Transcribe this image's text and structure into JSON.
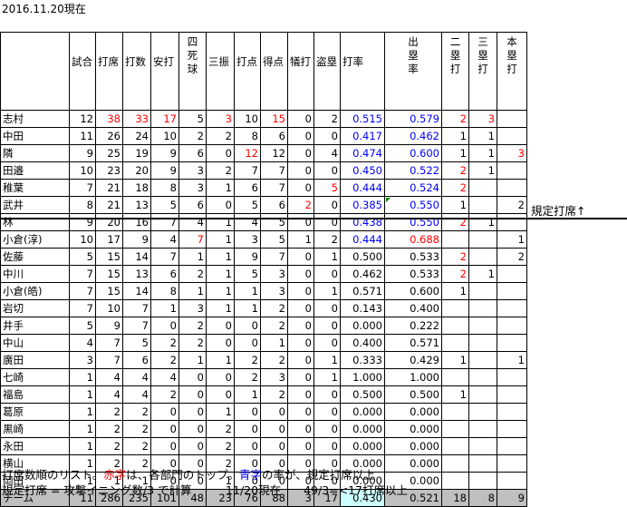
{
  "title": "2016.11.20現在",
  "headers": [
    {
      "key": "name",
      "text": ""
    },
    {
      "key": "games",
      "text": "試合"
    },
    {
      "key": "pa",
      "text": "打席"
    },
    {
      "key": "ab",
      "text": "打数"
    },
    {
      "key": "hits",
      "text": "安打"
    },
    {
      "key": "bb",
      "text": "四死球"
    },
    {
      "key": "so",
      "text": "三振"
    },
    {
      "key": "rbi",
      "text": "打点"
    },
    {
      "key": "runs",
      "text": "得点"
    },
    {
      "key": "sac",
      "text": "犠打"
    },
    {
      "key": "sb",
      "text": "盗塁"
    },
    {
      "key": "avg",
      "text": "打率"
    },
    {
      "key": "obp",
      "text": "出塁率"
    },
    {
      "key": "d",
      "text": "二塁打"
    },
    {
      "key": "t",
      "text": "三塁打"
    },
    {
      "key": "hr",
      "text": "本塁打"
    }
  ],
  "rows": [
    {
      "name": "志村",
      "games": "12",
      "pa": "38",
      "ab": "33",
      "hits": "17",
      "bb": "5",
      "so": "3",
      "rbi": "10",
      "runs": "15",
      "sac": "0",
      "sb": "2",
      "avg": "0.515",
      "obp": "0.579",
      "d": "2",
      "t": "3",
      "hr": "",
      "red": [
        "pa",
        "ab",
        "hits",
        "so",
        "runs",
        "d",
        "t"
      ],
      "blue": [
        "avg",
        "obp"
      ]
    },
    {
      "name": "中田",
      "games": "11",
      "pa": "26",
      "ab": "24",
      "hits": "10",
      "bb": "2",
      "so": "2",
      "rbi": "8",
      "runs": "6",
      "sac": "0",
      "sb": "0",
      "avg": "0.417",
      "obp": "0.462",
      "d": "1",
      "t": "1",
      "hr": "",
      "red": [],
      "blue": [
        "avg",
        "obp"
      ]
    },
    {
      "name": "隣",
      "games": "9",
      "pa": "25",
      "ab": "19",
      "hits": "9",
      "bb": "6",
      "so": "0",
      "rbi": "12",
      "runs": "12",
      "sac": "0",
      "sb": "4",
      "avg": "0.474",
      "obp": "0.600",
      "d": "1",
      "t": "1",
      "hr": "3",
      "red": [
        "rbi",
        "hr"
      ],
      "blue": [
        "avg",
        "obp"
      ]
    },
    {
      "name": "田邉",
      "games": "10",
      "pa": "23",
      "ab": "20",
      "hits": "9",
      "bb": "3",
      "so": "2",
      "rbi": "7",
      "runs": "7",
      "sac": "0",
      "sb": "0",
      "avg": "0.450",
      "obp": "0.522",
      "d": "2",
      "t": "1",
      "hr": "",
      "red": [
        "d"
      ],
      "blue": [
        "avg",
        "obp"
      ]
    },
    {
      "name": "稚葉",
      "games": "7",
      "pa": "21",
      "ab": "18",
      "hits": "8",
      "bb": "3",
      "so": "1",
      "rbi": "6",
      "runs": "7",
      "sac": "0",
      "sb": "5",
      "avg": "0.444",
      "obp": "0.524",
      "d": "2",
      "t": "",
      "hr": "",
      "red": [
        "sb",
        "d"
      ],
      "blue": [
        "avg",
        "obp"
      ]
    },
    {
      "name": "武井",
      "games": "8",
      "pa": "21",
      "ab": "13",
      "hits": "5",
      "bb": "6",
      "so": "0",
      "rbi": "5",
      "runs": "6",
      "sac": "2",
      "sb": "0",
      "avg": "0.385",
      "obp": "0.550",
      "d": "1",
      "t": "",
      "hr": "2",
      "red": [
        "sac"
      ],
      "blue": [
        "avg",
        "obp"
      ]
    },
    {
      "name": "林",
      "games": "9",
      "pa": "20",
      "ab": "16",
      "hits": "7",
      "bb": "4",
      "so": "1",
      "rbi": "4",
      "runs": "5",
      "sac": "0",
      "sb": "0",
      "avg": "0.438",
      "obp": "0.550",
      "d": "2",
      "t": "1",
      "hr": "",
      "red": [
        "d"
      ],
      "blue": [
        "avg",
        "obp"
      ]
    },
    {
      "name": "小倉(淳)",
      "games": "10",
      "pa": "17",
      "ab": "9",
      "hits": "4",
      "bb": "7",
      "so": "1",
      "rbi": "3",
      "runs": "5",
      "sac": "1",
      "sb": "2",
      "avg": "0.444",
      "obp": "0.688",
      "d": "",
      "t": "",
      "hr": "1",
      "red": [
        "bb",
        "obp"
      ],
      "blue": [
        "avg"
      ]
    },
    {
      "name": "佐藤",
      "games": "5",
      "pa": "15",
      "ab": "14",
      "hits": "7",
      "bb": "1",
      "so": "1",
      "rbi": "9",
      "runs": "7",
      "sac": "0",
      "sb": "1",
      "avg": "0.500",
      "obp": "0.533",
      "d": "2",
      "t": "",
      "hr": "2",
      "red": [
        "d"
      ],
      "blue": []
    },
    {
      "name": "中川",
      "games": "7",
      "pa": "15",
      "ab": "13",
      "hits": "6",
      "bb": "2",
      "so": "1",
      "rbi": "5",
      "runs": "3",
      "sac": "0",
      "sb": "0",
      "avg": "0.462",
      "obp": "0.533",
      "d": "2",
      "t": "1",
      "hr": "",
      "red": [
        "d"
      ],
      "blue": []
    },
    {
      "name": "小倉(皓)",
      "games": "7",
      "pa": "15",
      "ab": "14",
      "hits": "8",
      "bb": "1",
      "so": "1",
      "rbi": "1",
      "runs": "3",
      "sac": "0",
      "sb": "1",
      "avg": "0.571",
      "obp": "0.600",
      "d": "1",
      "t": "",
      "hr": "",
      "red": [],
      "blue": []
    },
    {
      "name": "岩切",
      "games": "7",
      "pa": "10",
      "ab": "7",
      "hits": "1",
      "bb": "3",
      "so": "1",
      "rbi": "1",
      "runs": "2",
      "sac": "0",
      "sb": "0",
      "avg": "0.143",
      "obp": "0.400",
      "d": "",
      "t": "",
      "hr": "",
      "red": [],
      "blue": []
    },
    {
      "name": "井手",
      "games": "5",
      "pa": "9",
      "ab": "7",
      "hits": "0",
      "bb": "2",
      "so": "0",
      "rbi": "0",
      "runs": "2",
      "sac": "0",
      "sb": "0",
      "avg": "0.000",
      "obp": "0.222",
      "d": "",
      "t": "",
      "hr": "",
      "red": [],
      "blue": []
    },
    {
      "name": "中山",
      "games": "4",
      "pa": "7",
      "ab": "5",
      "hits": "2",
      "bb": "2",
      "so": "0",
      "rbi": "0",
      "runs": "1",
      "sac": "0",
      "sb": "0",
      "avg": "0.400",
      "obp": "0.571",
      "d": "",
      "t": "",
      "hr": "",
      "red": [],
      "blue": []
    },
    {
      "name": "廣田",
      "games": "3",
      "pa": "7",
      "ab": "6",
      "hits": "2",
      "bb": "1",
      "so": "1",
      "rbi": "2",
      "runs": "2",
      "sac": "0",
      "sb": "1",
      "avg": "0.333",
      "obp": "0.429",
      "d": "1",
      "t": "",
      "hr": "1",
      "red": [],
      "blue": []
    },
    {
      "name": "七崎",
      "games": "1",
      "pa": "4",
      "ab": "4",
      "hits": "4",
      "bb": "0",
      "so": "0",
      "rbi": "2",
      "runs": "3",
      "sac": "0",
      "sb": "1",
      "avg": "1.000",
      "obp": "1.000",
      "d": "",
      "t": "",
      "hr": "",
      "red": [],
      "blue": []
    },
    {
      "name": "福島",
      "games": "1",
      "pa": "4",
      "ab": "4",
      "hits": "2",
      "bb": "0",
      "so": "0",
      "rbi": "1",
      "runs": "2",
      "sac": "0",
      "sb": "0",
      "avg": "0.500",
      "obp": "0.500",
      "d": "1",
      "t": "",
      "hr": "",
      "red": [],
      "blue": []
    },
    {
      "name": "葛原",
      "games": "1",
      "pa": "2",
      "ab": "2",
      "hits": "0",
      "bb": "0",
      "so": "1",
      "rbi": "0",
      "runs": "0",
      "sac": "0",
      "sb": "0",
      "avg": "0.000",
      "obp": "0.000",
      "d": "",
      "t": "",
      "hr": "",
      "red": [],
      "blue": []
    },
    {
      "name": "黒崎",
      "games": "1",
      "pa": "2",
      "ab": "2",
      "hits": "0",
      "bb": "0",
      "so": "2",
      "rbi": "0",
      "runs": "0",
      "sac": "0",
      "sb": "0",
      "avg": "0.000",
      "obp": "0.000",
      "d": "",
      "t": "",
      "hr": "",
      "red": [],
      "blue": []
    },
    {
      "name": "永田",
      "games": "1",
      "pa": "2",
      "ab": "2",
      "hits": "0",
      "bb": "0",
      "so": "2",
      "rbi": "0",
      "runs": "0",
      "sac": "0",
      "sb": "0",
      "avg": "0.000",
      "obp": "0.000",
      "d": "",
      "t": "",
      "hr": "",
      "red": [],
      "blue": []
    },
    {
      "name": "横山",
      "games": "1",
      "pa": "2",
      "ab": "2",
      "hits": "0",
      "bb": "0",
      "so": "2",
      "rbi": "0",
      "runs": "0",
      "sac": "0",
      "sb": "0",
      "avg": "0.000",
      "obp": "0.000",
      "d": "",
      "t": "",
      "hr": "",
      "red": [],
      "blue": []
    },
    {
      "name": "岡田",
      "games": "1",
      "pa": "1",
      "ab": "1",
      "hits": "0",
      "bb": "0",
      "so": "1",
      "rbi": "0",
      "runs": "0",
      "sac": "0",
      "sb": "0",
      "avg": "0.000",
      "obp": "0.000",
      "d": "",
      "t": "",
      "hr": "",
      "red": [],
      "blue": []
    }
  ],
  "team": {
    "name": "チーム",
    "games": "11",
    "pa": "286",
    "ab": "235",
    "hits": "101",
    "bb": "48",
    "so": "23",
    "rbi": "76",
    "runs": "88",
    "sac": "3",
    "sb": "17",
    "avg": "0.430",
    "obp": "0.521",
    "d": "18",
    "t": "8",
    "hr": "9"
  },
  "annotation": "規定打席↑",
  "footer_parts": [
    {
      "text": "打席数順のリスト。",
      "color": "black"
    },
    {
      "text": "赤字",
      "color": "red"
    },
    {
      "text": "は、各部門のトップ。",
      "color": "black"
    },
    {
      "text": "青字",
      "color": "blue"
    },
    {
      "text": "の率が、規定打席以上",
      "color": "black"
    }
  ],
  "footer2": "規定打席 = 攻撃イニング数/3 で計算　　　11/20現在　　49/3=<17打席以上",
  "colors": {
    "red": "#ff0000",
    "blue": "#0000ff",
    "team_bg": "#bfbfbf",
    "highlight": "#ccffff",
    "indicator": "#008000"
  }
}
